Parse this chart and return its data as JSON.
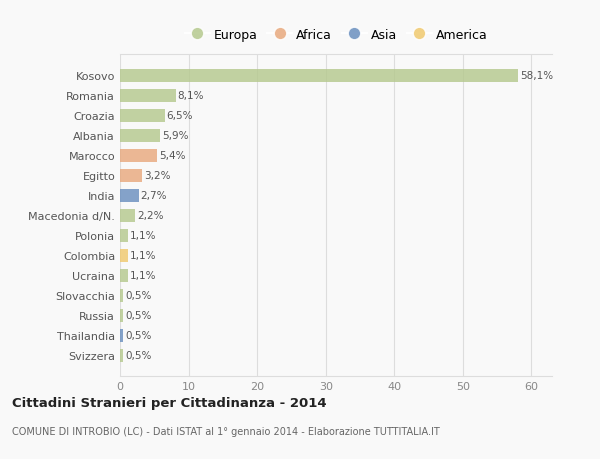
{
  "countries": [
    "Kosovo",
    "Romania",
    "Croazia",
    "Albania",
    "Marocco",
    "Egitto",
    "India",
    "Macedonia d/N.",
    "Polonia",
    "Colombia",
    "Ucraina",
    "Slovacchia",
    "Russia",
    "Thailandia",
    "Svizzera"
  ],
  "values": [
    58.1,
    8.1,
    6.5,
    5.9,
    5.4,
    3.2,
    2.7,
    2.2,
    1.1,
    1.1,
    1.1,
    0.5,
    0.5,
    0.5,
    0.5
  ],
  "labels": [
    "58,1%",
    "8,1%",
    "6,5%",
    "5,9%",
    "5,4%",
    "3,2%",
    "2,7%",
    "2,2%",
    "1,1%",
    "1,1%",
    "1,1%",
    "0,5%",
    "0,5%",
    "0,5%",
    "0,5%"
  ],
  "colors": [
    "#b5c98e",
    "#b5c98e",
    "#b5c98e",
    "#b5c98e",
    "#e8a97e",
    "#e8a97e",
    "#6a8fbf",
    "#b5c98e",
    "#b5c98e",
    "#f0c96e",
    "#b5c98e",
    "#b5c98e",
    "#b5c98e",
    "#6a8fbf",
    "#b5c98e"
  ],
  "legend_labels": [
    "Europa",
    "Africa",
    "Asia",
    "America"
  ],
  "legend_colors": [
    "#b5c98e",
    "#e8a97e",
    "#6a8fbf",
    "#f0c96e"
  ],
  "title": "Cittadini Stranieri per Cittadinanza - 2014",
  "subtitle": "COMUNE DI INTROBIO (LC) - Dati ISTAT al 1° gennaio 2014 - Elaborazione TUTTITALIA.IT",
  "xlim": [
    0,
    63
  ],
  "xticks": [
    0,
    10,
    20,
    30,
    40,
    50,
    60
  ],
  "bg_color": "#f9f9f9",
  "grid_color": "#dddddd",
  "bar_height": 0.65
}
